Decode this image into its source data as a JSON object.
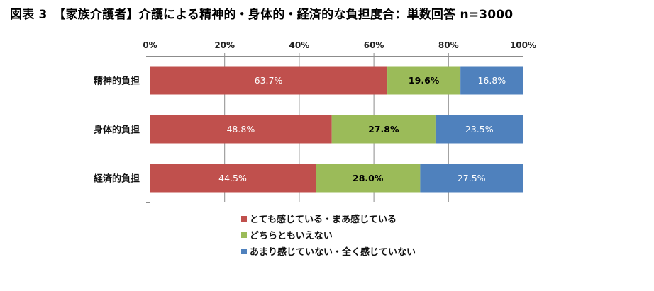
{
  "title": "図表 3　【家族介護者】介護による精神的・身体的・経済的な負担度合：単数回答 n=3000",
  "chart_data": {
    "type": "bar",
    "orientation": "horizontal",
    "stacked": "percent",
    "categories": [
      "精神的負担",
      "身体的負担",
      "経済的負担"
    ],
    "series": [
      {
        "name": "とても感じている・まあ感じている",
        "values": [
          63.7,
          48.8,
          44.5
        ],
        "color": "#C0504D"
      },
      {
        "name": "どちらともいえない",
        "values": [
          19.6,
          27.8,
          28.0
        ],
        "color": "#9BBB59"
      },
      {
        "name": "あまり感じていない・全く感じていない",
        "values": [
          16.8,
          23.5,
          27.5
        ],
        "color": "#4F81BD"
      }
    ],
    "x_ticks": [
      "0%",
      "20%",
      "40%",
      "60%",
      "80%",
      "100%"
    ],
    "xlim": [
      0,
      100
    ],
    "grid": true,
    "legend_position": "bottom",
    "data_label_colors": [
      "#ffffff",
      "#000000",
      "#ffffff"
    ]
  }
}
